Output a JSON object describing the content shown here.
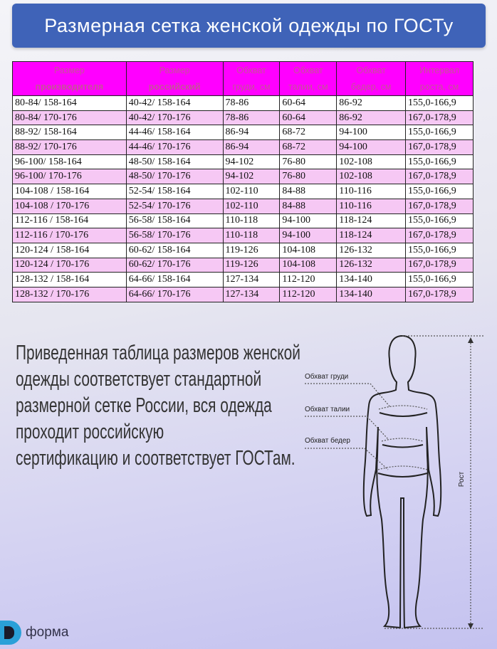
{
  "title": "Размерная сетка женской одежды по ГОСТу",
  "table": {
    "headers": [
      [
        "Размер",
        "производителя"
      ],
      [
        "Размер",
        "российский"
      ],
      [
        "Обхват",
        "груди, см"
      ],
      [
        "Обхват",
        "талии, см"
      ],
      [
        "Обхват",
        "бедер, см"
      ],
      [
        "Интервал",
        "роста, см"
      ]
    ],
    "rows": [
      [
        "80-84/ 158-164",
        "40-42/ 158-164",
        "78-86",
        "60-64",
        "86-92",
        "155,0-166,9"
      ],
      [
        "80-84/ 170-176",
        "40-42/ 170-176",
        "78-86",
        "60-64",
        "86-92",
        "167,0-178,9"
      ],
      [
        "88-92/ 158-164",
        "44-46/ 158-164",
        "86-94",
        "68-72",
        "94-100",
        "155,0-166,9"
      ],
      [
        "88-92/ 170-176",
        "44-46/ 170-176",
        "86-94",
        "68-72",
        "94-100",
        "167,0-178,9"
      ],
      [
        "96-100/ 158-164",
        "48-50/ 158-164",
        "94-102",
        "76-80",
        "102-108",
        "155,0-166,9"
      ],
      [
        "96-100/ 170-176",
        "48-50/ 170-176",
        "94-102",
        "76-80",
        "102-108",
        "167,0-178,9"
      ],
      [
        "104-108 / 158-164",
        "52-54/ 158-164",
        "102-110",
        "84-88",
        "110-116",
        "155,0-166,9"
      ],
      [
        "104-108 / 170-176",
        "52-54/ 170-176",
        "102-110",
        "84-88",
        "110-116",
        "167,0-178,9"
      ],
      [
        "112-116 / 158-164",
        "56-58/ 158-164",
        "110-118",
        "94-100",
        "118-124",
        "155,0-166,9"
      ],
      [
        "112-116 / 170-176",
        "56-58/ 170-176",
        "110-118",
        "94-100",
        "118-124",
        "167,0-178,9"
      ],
      [
        "120-124 / 158-164",
        "60-62/ 158-164",
        "119-126",
        "104-108",
        "126-132",
        "155,0-166,9"
      ],
      [
        "120-124 / 170-176",
        "60-62/ 170-176",
        "119-126",
        "104-108",
        "126-132",
        "167,0-178,9"
      ],
      [
        "128-132 / 158-164",
        "64-66/ 158-164",
        "127-134",
        "112-120",
        "134-140",
        "155,0-166,9"
      ],
      [
        "128-132 / 170-176",
        "64-66/ 170-176",
        "127-134",
        "112-120",
        "134-140",
        "167,0-178,9"
      ]
    ]
  },
  "description": [
    "Приведенная таблица размеров женской",
    "одежды соответствует стандартной",
    "размерной сетке России, вся одежда",
    "проходит российскую",
    "сертификацию и соответствует ГОСТам."
  ],
  "figure": {
    "chest": "Обхват груди",
    "waist": "Обхват талии",
    "hips": "Обхват бедер",
    "height": "Рост"
  },
  "logo": {
    "text": "форма"
  },
  "colors": {
    "title_bg": "#3f63b8",
    "header_bg": "#ff00ff",
    "row_alt": "#f6c8f4"
  }
}
